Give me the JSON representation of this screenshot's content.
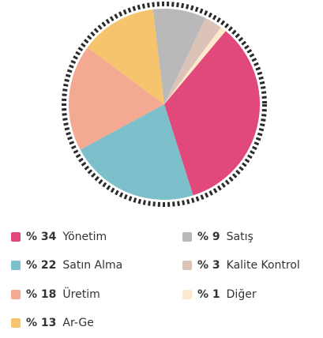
{
  "chart_data": {
    "type": "pie",
    "categories": [
      "Yönetim",
      "Satın Alma",
      "Üretim",
      "Ar-Ge",
      "Satış",
      "Kalite Kontrol",
      "Diğer"
    ],
    "values": [
      34,
      22,
      18,
      13,
      9,
      3,
      1
    ],
    "value_labels": [
      "% 34",
      "% 22",
      "% 18",
      "% 13",
      "% 9",
      "% 3",
      "% 1"
    ],
    "colors": [
      "#e0497a",
      "#7dbfcb",
      "#f4a992",
      "#f5c46c",
      "#b9b9b9",
      "#dcc3b8",
      "#fde9cc"
    ]
  }
}
